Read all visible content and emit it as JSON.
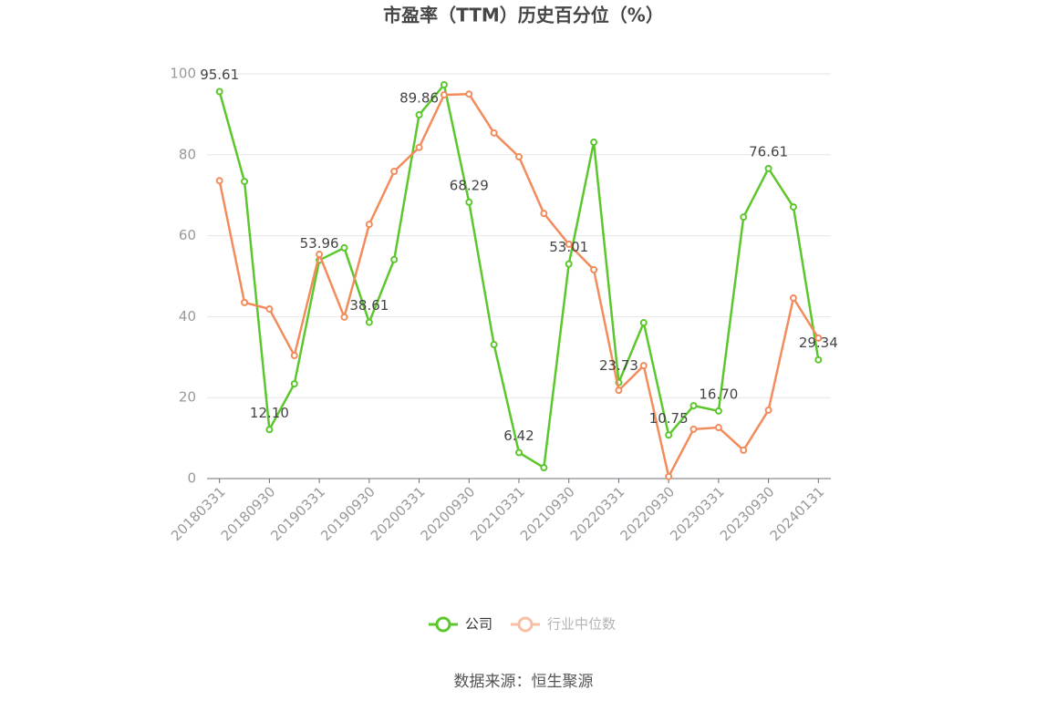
{
  "chart_data": {
    "type": "line",
    "title": "市盈率（TTM）历史百分位（%）",
    "categories": [
      "20180331",
      null,
      "20180930",
      null,
      "20190331",
      null,
      "20190930",
      null,
      "20200331",
      null,
      "20200930",
      null,
      "20210331",
      null,
      "20210930",
      null,
      "20220331",
      null,
      "20220930",
      null,
      "20230331",
      null,
      "20230930",
      null,
      "20240131"
    ],
    "series": [
      {
        "name": "公司",
        "color": "#5cc72c",
        "values": [
          95.61,
          73.4,
          12.1,
          23.4,
          53.96,
          57.0,
          38.61,
          54.1,
          89.86,
          97.3,
          68.29,
          33.1,
          6.42,
          2.7,
          53.01,
          83.1,
          23.73,
          38.5,
          10.75,
          18.0,
          16.7,
          64.6,
          76.61,
          67.1,
          29.34
        ],
        "value_labels": [
          "95.61",
          null,
          "12.10",
          null,
          "53.96",
          null,
          "38.61",
          null,
          "89.86",
          null,
          "68.29",
          null,
          "6.42",
          null,
          "53.01",
          null,
          "23.73",
          null,
          "10.75",
          null,
          "16.70",
          null,
          "76.61",
          null,
          "29.34"
        ]
      },
      {
        "name": "行业中位数",
        "color": "#f28c5c",
        "values": [
          73.6,
          43.5,
          41.9,
          30.4,
          55.4,
          39.9,
          62.8,
          75.9,
          81.8,
          94.8,
          95.0,
          85.4,
          79.5,
          65.5,
          57.9,
          51.6,
          21.8,
          27.9,
          0.5,
          12.2,
          12.6,
          7.0,
          16.9,
          44.6,
          34.7
        ]
      }
    ],
    "ylim": [
      0,
      100
    ],
    "yticks": [
      0,
      20,
      40,
      60,
      80,
      100
    ],
    "grid": true,
    "source": "数据来源：恒生聚源"
  }
}
